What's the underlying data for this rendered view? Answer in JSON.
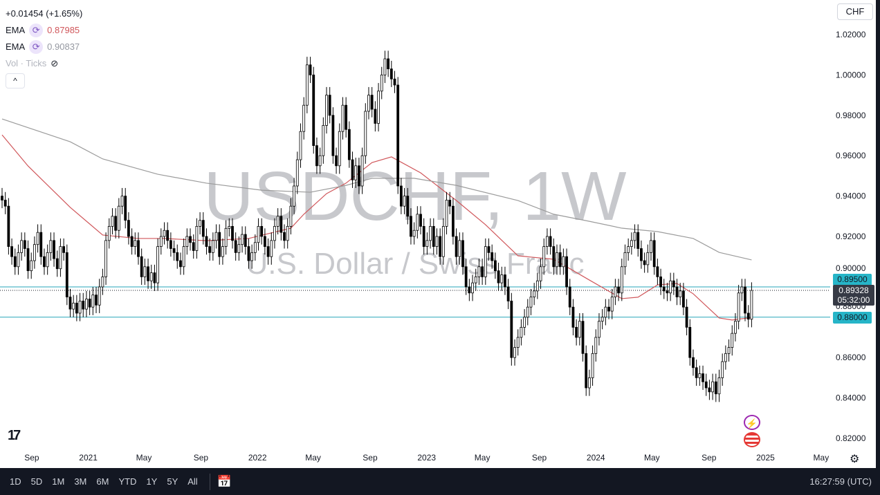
{
  "legend": {
    "change": "+0.01454 (+1.65%)",
    "ema1_label": "EMA",
    "ema1_value": "0.87985",
    "ema2_label": "EMA",
    "ema2_value": "0.90837",
    "vol_label": "Vol · Ticks",
    "collapse": "^"
  },
  "currency": "CHF",
  "watermark": {
    "symbol": "USDCHF, 1W",
    "description": "U.S. Dollar / Swiss Franc"
  },
  "price_labels": {
    "upper": "0.89500",
    "lower": "0.88000",
    "current": "0.89328",
    "countdown": "05:32:00"
  },
  "toolbar": {
    "ranges": [
      "1D",
      "5D",
      "1M",
      "3M",
      "6M",
      "YTD",
      "1Y",
      "5Y",
      "All"
    ],
    "clock": "16:27:59 (UTC)"
  },
  "colors": {
    "ema_fast": "#d0565a",
    "ema_slow": "#9b9b9b",
    "hline": "#26a6b8",
    "up": "#ffffff",
    "down": "#000000"
  },
  "icons": {
    "logo": "tradingview-logo",
    "events": "lightning-icon",
    "flag": "us-flag-icon",
    "settings": "gear-icon",
    "calendar": "calendar-goto-icon",
    "hidden": "eye-off-icon",
    "indicator": "refresh-icon"
  },
  "chart_data": {
    "type": "candlestick",
    "interval": "1W",
    "first_week": "2020-06-29",
    "ylim": [
      0.81,
      1.03
    ],
    "y_ticks": [
      "1.02000",
      "1.00000",
      "0.98000",
      "0.96000",
      "0.94000",
      "0.92000",
      "0.90000",
      "0.88000",
      "0.86000",
      "0.84000",
      "0.82000"
    ],
    "x_ticks": [
      {
        "label": "Sep",
        "date": "2020-09-01"
      },
      {
        "label": "2021",
        "date": "2021-01-01"
      },
      {
        "label": "May",
        "date": "2021-05-01"
      },
      {
        "label": "Sep",
        "date": "2021-09-01"
      },
      {
        "label": "2022",
        "date": "2022-01-01"
      },
      {
        "label": "May",
        "date": "2022-05-01"
      },
      {
        "label": "Sep",
        "date": "2022-09-01"
      },
      {
        "label": "2023",
        "date": "2023-01-01"
      },
      {
        "label": "May",
        "date": "2023-05-01"
      },
      {
        "label": "Sep",
        "date": "2023-09-01"
      },
      {
        "label": "2024",
        "date": "2024-01-01"
      },
      {
        "label": "May",
        "date": "2024-05-01"
      },
      {
        "label": "Sep",
        "date": "2024-09-01"
      },
      {
        "label": "2025",
        "date": "2025-01-01"
      },
      {
        "label": "May",
        "date": "2025-05-01"
      }
    ],
    "first_open": 0.94,
    "closes": [
      0.938,
      0.935,
      0.915,
      0.91,
      0.905,
      0.912,
      0.918,
      0.914,
      0.903,
      0.908,
      0.916,
      0.922,
      0.91,
      0.905,
      0.912,
      0.918,
      0.909,
      0.904,
      0.915,
      0.912,
      0.89,
      0.884,
      0.887,
      0.882,
      0.888,
      0.884,
      0.889,
      0.885,
      0.891,
      0.886,
      0.895,
      0.9,
      0.918,
      0.925,
      0.93,
      0.923,
      0.935,
      0.94,
      0.928,
      0.92,
      0.915,
      0.918,
      0.91,
      0.9,
      0.905,
      0.898,
      0.902,
      0.897,
      0.915,
      0.92,
      0.923,
      0.918,
      0.914,
      0.912,
      0.908,
      0.905,
      0.915,
      0.92,
      0.917,
      0.913,
      0.925,
      0.928,
      0.92,
      0.915,
      0.912,
      0.918,
      0.922,
      0.91,
      0.915,
      0.924,
      0.925,
      0.918,
      0.912,
      0.916,
      0.921,
      0.915,
      0.908,
      0.912,
      0.917,
      0.925,
      0.92,
      0.915,
      0.91,
      0.918,
      0.925,
      0.93,
      0.922,
      0.918,
      0.925,
      0.935,
      0.945,
      0.958,
      0.972,
      0.985,
      1.005,
      1.0,
      0.965,
      0.955,
      0.96,
      0.975,
      0.99,
      0.98,
      0.96,
      0.955,
      0.972,
      0.985,
      0.973,
      0.958,
      0.948,
      0.955,
      0.945,
      0.96,
      0.982,
      0.99,
      0.983,
      0.976,
      0.992,
      1.0,
      1.008,
      1.003,
      0.998,
      0.995,
      0.945,
      0.935,
      0.94,
      0.93,
      0.92,
      0.923,
      0.931,
      0.925,
      0.915,
      0.918,
      0.925,
      0.915,
      0.92,
      0.91,
      0.925,
      0.938,
      0.935,
      0.92,
      0.91,
      0.918,
      0.905,
      0.895,
      0.892,
      0.897,
      0.9,
      0.905,
      0.9,
      0.915,
      0.912,
      0.908,
      0.903,
      0.897,
      0.901,
      0.895,
      0.888,
      0.86,
      0.865,
      0.87,
      0.875,
      0.88,
      0.885,
      0.89,
      0.893,
      0.898,
      0.905,
      0.915,
      0.92,
      0.915,
      0.905,
      0.912,
      0.905,
      0.91,
      0.895,
      0.885,
      0.875,
      0.87,
      0.878,
      0.862,
      0.845,
      0.85,
      0.862,
      0.87,
      0.878,
      0.88,
      0.885,
      0.883,
      0.89,
      0.895,
      0.892,
      0.905,
      0.912,
      0.915,
      0.918,
      0.922,
      0.914,
      0.908,
      0.906,
      0.912,
      0.918,
      0.905,
      0.9,
      0.895,
      0.893,
      0.892,
      0.898,
      0.895,
      0.89,
      0.893,
      0.885,
      0.875,
      0.86,
      0.855,
      0.85,
      0.852,
      0.848,
      0.845,
      0.843,
      0.848,
      0.842,
      0.85,
      0.858,
      0.862,
      0.865,
      0.872,
      0.878,
      0.892,
      0.895,
      0.882,
      0.879,
      0.89328
    ],
    "hlines": [
      0.895,
      0.88
    ],
    "current_price": 0.89328,
    "ema_fast": [
      [
        "2020-06-29",
        0.9703
      ],
      [
        "2020-08-24",
        0.9549
      ],
      [
        "2020-11-23",
        0.9344
      ],
      [
        "2021-02-01",
        0.9207
      ],
      [
        "2021-04-19",
        0.919
      ],
      [
        "2021-06-14",
        0.919
      ],
      [
        "2021-09-13",
        0.9179
      ],
      [
        "2021-12-13",
        0.919
      ],
      [
        "2022-03-14",
        0.9241
      ],
      [
        "2022-04-11",
        0.931
      ],
      [
        "2022-05-30",
        0.9412
      ],
      [
        "2022-07-11",
        0.9464
      ],
      [
        "2022-09-05",
        0.9566
      ],
      [
        "2022-10-17",
        0.9594
      ],
      [
        "2022-12-19",
        0.9515
      ],
      [
        "2023-03-06",
        0.9378
      ],
      [
        "2023-05-08",
        0.9258
      ],
      [
        "2023-07-17",
        0.9104
      ],
      [
        "2023-10-02",
        0.9087
      ],
      [
        "2023-12-18",
        0.8984
      ],
      [
        "2024-02-26",
        0.8892
      ],
      [
        "2024-04-01",
        0.8899
      ],
      [
        "2024-05-13",
        0.896
      ],
      [
        "2024-06-24",
        0.8967
      ],
      [
        "2024-07-29",
        0.8916
      ],
      [
        "2024-09-23",
        0.8796
      ],
      [
        "2024-10-21",
        0.8786
      ],
      [
        "2024-12-02",
        0.87985
      ]
    ],
    "ema_slow": [
      [
        "2020-06-29",
        0.9782
      ],
      [
        "2020-11-23",
        0.9669
      ],
      [
        "2021-02-01",
        0.9584
      ],
      [
        "2021-05-31",
        0.9508
      ],
      [
        "2021-09-13",
        0.9464
      ],
      [
        "2022-01-10",
        0.9429
      ],
      [
        "2022-04-25",
        0.9419
      ],
      [
        "2022-07-11",
        0.9453
      ],
      [
        "2022-09-05",
        0.9488
      ],
      [
        "2022-12-05",
        0.9488
      ],
      [
        "2023-03-06",
        0.9453
      ],
      [
        "2023-07-17",
        0.9378
      ],
      [
        "2023-10-02",
        0.931
      ],
      [
        "2023-12-18",
        0.9275
      ],
      [
        "2024-02-26",
        0.9241
      ],
      [
        "2024-05-13",
        0.9224
      ],
      [
        "2024-07-29",
        0.919
      ],
      [
        "2024-09-23",
        0.9121
      ],
      [
        "2024-12-02",
        0.90837
      ]
    ]
  }
}
